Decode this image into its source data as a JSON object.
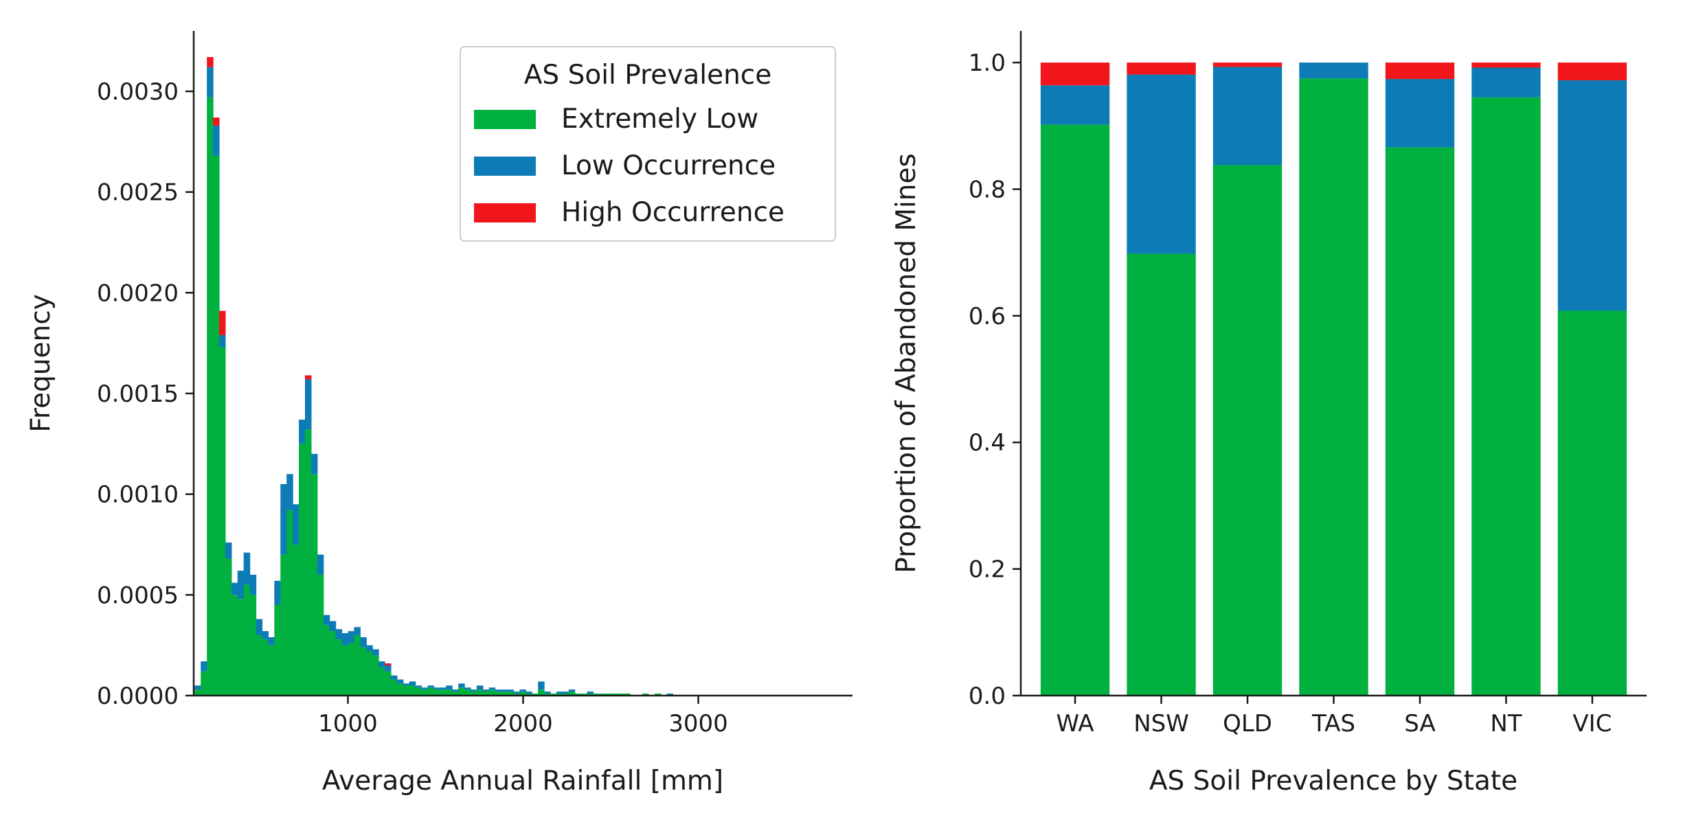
{
  "colors": {
    "extremely_low": "#00b140",
    "low_occurrence": "#0d7bb5",
    "high_occurrence": "#f0161c",
    "axis": "#1a1a1a",
    "legend_border": "#cccccc"
  },
  "chart_data": [
    {
      "type": "bar",
      "stacked": true,
      "histogram": true,
      "xlabel": "Average Annual Rainfall [mm]",
      "ylabel": "Frequency",
      "xlim": [
        120,
        3880
      ],
      "ylim": [
        0,
        0.0033
      ],
      "xticks": [
        1000,
        2000,
        3000
      ],
      "xtick_labels": [
        "1000",
        "2000",
        "3000"
      ],
      "yticks": [
        0,
        0.0005,
        0.001,
        0.0015,
        0.002,
        0.0025,
        0.003
      ],
      "ytick_labels": [
        "0.0000",
        "0.0005",
        "0.0010",
        "0.0015",
        "0.0020",
        "0.0025",
        "0.0030"
      ],
      "legend": {
        "title": "AS Soil Prevalence",
        "position": "top-right",
        "entries": [
          "Extremely Low",
          "Low Occurrence",
          "High Occurrence"
        ]
      },
      "bin_start": 125,
      "bin_width": 35,
      "series": [
        {
          "name": "Extremely Low",
          "values": [
            3e-05,
            0.00012,
            0.00297,
            0.00268,
            0.00173,
            0.00068,
            0.0005,
            0.00048,
            0.00055,
            0.0005,
            0.0003,
            0.00028,
            0.00025,
            0.00045,
            0.0007,
            0.00092,
            0.00075,
            0.00125,
            0.00132,
            0.0011,
            0.0006,
            0.00035,
            0.00032,
            0.00028,
            0.00025,
            0.00026,
            0.0003,
            0.00024,
            0.00022,
            0.0002,
            0.00014,
            0.00012,
            8e-05,
            6e-05,
            5e-05,
            5e-05,
            4e-05,
            3e-05,
            4e-05,
            3e-05,
            3e-05,
            3e-05,
            2e-05,
            4e-05,
            3e-05,
            2e-05,
            3e-05,
            2e-05,
            3e-05,
            2e-05,
            2e-05,
            2e-05,
            1e-05,
            2e-05,
            1e-05,
            1e-05,
            3e-05,
            1e-05,
            1e-05,
            1e-05,
            1e-05,
            2e-05,
            1e-05,
            1e-05,
            1e-05,
            1e-05,
            1e-05,
            1e-05,
            1e-05,
            1e-05,
            1e-05,
            0.0,
            0.0,
            1e-05,
            0.0,
            1e-05,
            0.0,
            0.0,
            0.0,
            0.0,
            0.0,
            0.0,
            0.0,
            0.0,
            0.0,
            0.0,
            0.0,
            0.0,
            0.0,
            0.0,
            0.0,
            0.0,
            0.0,
            0.0,
            0.0,
            0.0,
            0.0,
            0.0,
            0.0,
            0.0,
            0.0,
            0.0,
            0.0,
            0.0,
            0.0,
            0.0,
            0.0
          ]
        },
        {
          "name": "Low Occurrence",
          "values": [
            2e-05,
            5e-05,
            0.00015,
            0.00015,
            6e-05,
            8e-05,
            6e-05,
            0.00014,
            0.00016,
            0.0001,
            8e-05,
            4e-05,
            4e-05,
            0.00012,
            0.00035,
            0.00018,
            0.0002,
            0.00012,
            0.00025,
            0.0001,
            0.0001,
            5e-05,
            5e-05,
            5e-05,
            6e-05,
            6e-05,
            4e-05,
            5e-05,
            3e-05,
            3e-05,
            3e-05,
            3e-05,
            2e-05,
            2e-05,
            1e-05,
            2e-05,
            1e-05,
            1e-05,
            1e-05,
            1e-05,
            1e-05,
            2e-05,
            1e-05,
            2e-05,
            1e-05,
            1e-05,
            2e-05,
            1e-05,
            1e-05,
            1e-05,
            1e-05,
            1e-05,
            1e-05,
            1e-05,
            1e-05,
            0.0,
            4e-05,
            1e-05,
            0.0,
            1e-05,
            1e-05,
            1e-05,
            0.0,
            0.0,
            1e-05,
            0.0,
            0.0,
            0.0,
            0.0,
            0.0,
            0.0,
            0.0,
            0.0,
            0.0,
            0.0,
            0.0,
            0.0,
            1e-05,
            0.0,
            0.0,
            0.0,
            0.0,
            0.0,
            0.0,
            0.0,
            0.0,
            0.0,
            0.0,
            0.0,
            0.0,
            0.0,
            0.0,
            0.0,
            0.0,
            0.0,
            0.0,
            0.0,
            0.0,
            0.0,
            0.0,
            0.0,
            0.0,
            0.0,
            0.0,
            0.0,
            0.0,
            0.0
          ]
        },
        {
          "name": "High Occurrence",
          "values": [
            0.0,
            0.0,
            5e-05,
            4e-05,
            0.00012,
            0.0,
            0.0,
            0.0,
            0.0,
            0.0,
            0.0,
            0.0,
            0.0,
            0.0,
            0.0,
            0.0,
            0.0,
            0.0,
            2e-05,
            0.0,
            0.0,
            0.0,
            0.0,
            0.0,
            0.0,
            0.0,
            0.0,
            0.0,
            0.0,
            0.0,
            0.0,
            1e-05,
            0.0,
            0.0,
            0.0,
            0.0,
            0.0,
            0.0,
            0.0,
            0.0,
            0.0,
            0.0,
            0.0,
            0.0,
            0.0,
            0.0,
            0.0,
            0.0,
            0.0,
            0.0,
            0.0,
            0.0,
            0.0,
            0.0,
            0.0,
            0.0,
            0.0,
            0.0,
            0.0,
            0.0,
            0.0,
            0.0,
            0.0,
            0.0,
            0.0,
            0.0,
            0.0,
            0.0,
            0.0,
            0.0,
            0.0,
            0.0,
            0.0,
            0.0,
            0.0,
            0.0,
            0.0,
            0.0,
            0.0,
            0.0,
            0.0,
            0.0,
            0.0,
            0.0,
            0.0,
            0.0,
            0.0,
            0.0,
            0.0,
            0.0,
            0.0,
            0.0,
            0.0,
            0.0,
            0.0,
            0.0,
            0.0,
            0.0,
            0.0,
            0.0,
            0.0,
            0.0,
            0.0,
            0.0,
            0.0,
            0.0,
            0.0
          ]
        }
      ]
    },
    {
      "type": "bar",
      "stacked": true,
      "xlabel": "AS Soil Prevalence by State",
      "ylabel": "Proportion of Abandoned Mines",
      "ylim": [
        0,
        1.05
      ],
      "yticks": [
        0,
        0.2,
        0.4,
        0.6,
        0.8,
        1.0
      ],
      "ytick_labels": [
        "0.0",
        "0.2",
        "0.4",
        "0.6",
        "0.8",
        "1.0"
      ],
      "categories": [
        "WA",
        "NSW",
        "QLD",
        "TAS",
        "SA",
        "NT",
        "VIC"
      ],
      "series": [
        {
          "name": "Extremely Low",
          "values": [
            0.902,
            0.698,
            0.838,
            0.975,
            0.866,
            0.945,
            0.608
          ]
        },
        {
          "name": "Low Occurrence",
          "values": [
            0.062,
            0.283,
            0.155,
            0.025,
            0.108,
            0.047,
            0.364
          ]
        },
        {
          "name": "High Occurrence",
          "values": [
            0.036,
            0.019,
            0.007,
            0.0,
            0.026,
            0.008,
            0.028
          ]
        }
      ]
    }
  ]
}
